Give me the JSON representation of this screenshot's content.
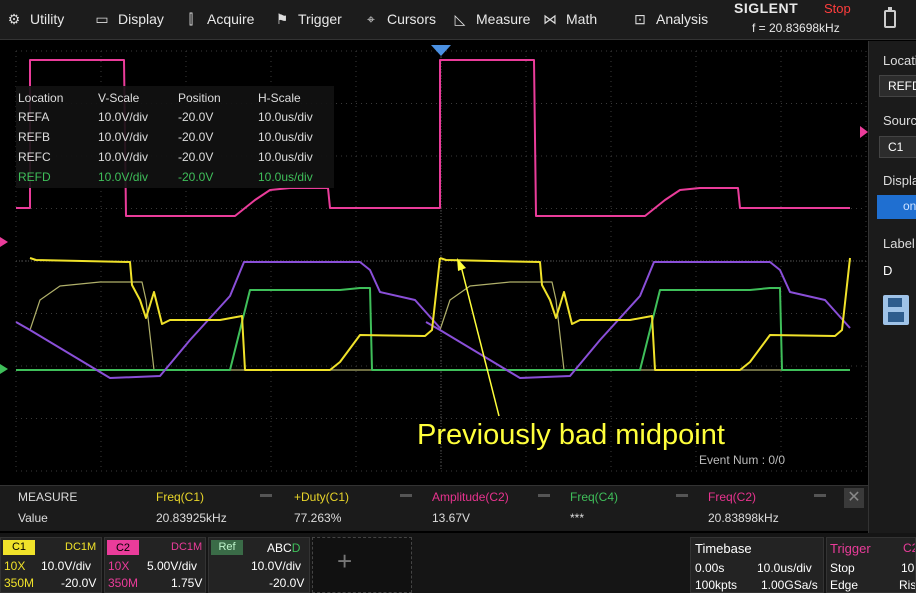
{
  "menu": [
    {
      "label": "Utility",
      "icon": "gear-icon",
      "glyph": "⚙"
    },
    {
      "label": "Display",
      "icon": "monitor-icon",
      "glyph": "▭"
    },
    {
      "label": "Acquire",
      "icon": "acquire-icon",
      "glyph": "⫿"
    },
    {
      "label": "Trigger",
      "icon": "flag-icon",
      "glyph": "⚑"
    },
    {
      "label": "Cursors",
      "icon": "crosshair-icon",
      "glyph": "⌖"
    },
    {
      "label": "Measure",
      "icon": "ruler-icon",
      "glyph": "◺"
    },
    {
      "label": "Math",
      "icon": "math-icon",
      "glyph": "⋈"
    },
    {
      "label": "Analysis",
      "icon": "analysis-icon",
      "glyph": "⊡"
    }
  ],
  "brand": {
    "logo": "SIGLENT",
    "status": "Stop",
    "freq": "f = 20.83698kHz"
  },
  "ref_table": {
    "headers": [
      "Location",
      "V-Scale",
      "Position",
      "H-Scale"
    ],
    "rows": [
      {
        "cells": [
          "REFA",
          "10.0V/div",
          "-20.0V",
          "10.0us/div"
        ],
        "color": "#e0e0e0"
      },
      {
        "cells": [
          "REFB",
          "10.0V/div",
          "-20.0V",
          "10.0us/div"
        ],
        "color": "#e0e0e0"
      },
      {
        "cells": [
          "REFC",
          "10.0V/div",
          "-20.0V",
          "10.0us/div"
        ],
        "color": "#e0e0e0"
      },
      {
        "cells": [
          "REFD",
          "10.0V/div",
          "-20.0V",
          "10.0us/div"
        ],
        "color": "#3fbf5a"
      }
    ]
  },
  "annotation": "Previously bad midpoint",
  "event_num": "Event Num : 0/0",
  "measure": {
    "title": "MEASURE",
    "value_label": "Value",
    "items": [
      {
        "label": "Freq(C1)",
        "value": "20.83925kHz",
        "color": "#e8d52a"
      },
      {
        "label": "+Duty(C1)",
        "value": "77.263%",
        "color": "#e8d52a"
      },
      {
        "label": "Amplitude(C2)",
        "value": "13.67V",
        "color": "#e8338f"
      },
      {
        "label": "Freq(C4)",
        "value": "***",
        "color": "#3fbf5a"
      },
      {
        "label": "Freq(C2)",
        "value": "20.83898kHz",
        "color": "#e8338f"
      }
    ],
    "close": "✕"
  },
  "channels": {
    "c1": {
      "tag": "C1",
      "coupling": "DC1M",
      "probe": "10X",
      "scale": "10.0V/div",
      "bw": "350M",
      "offset": "-20.0V"
    },
    "c2": {
      "tag": "C2",
      "coupling": "DC1M",
      "probe": "10X",
      "scale": "5.00V/div",
      "bw": "350M",
      "offset": "1.75V"
    },
    "ref": {
      "tag": "Ref",
      "sel_a": "ABC",
      "sel_d": "D",
      "scale": "10.0V/div",
      "offset": "-20.0V"
    }
  },
  "timebase": {
    "title": "Timebase",
    "delay": "0.00s",
    "scale": "10.0us/div",
    "points": "100kpts",
    "rate": "1.00GSa/s"
  },
  "trigger": {
    "title": "Trigger",
    "source": "C2",
    "state": "Stop",
    "level": "10",
    "type": "Edge",
    "slope": "Ris"
  },
  "side_panel": {
    "location_label": "Location",
    "location_value": "REFD",
    "source_label": "Source",
    "source_value": "C1",
    "display_label": "Display",
    "display_value": "on",
    "label_label": "Label",
    "label_value": "D"
  },
  "colors": {
    "ch1": "#f0e22a",
    "ch2": "#ea3c9a",
    "ch3": "#8a4fd8",
    "ch4": "#3fbf5a",
    "grid": "#3a3a3a",
    "trigger_marker": "#4a90e2"
  }
}
